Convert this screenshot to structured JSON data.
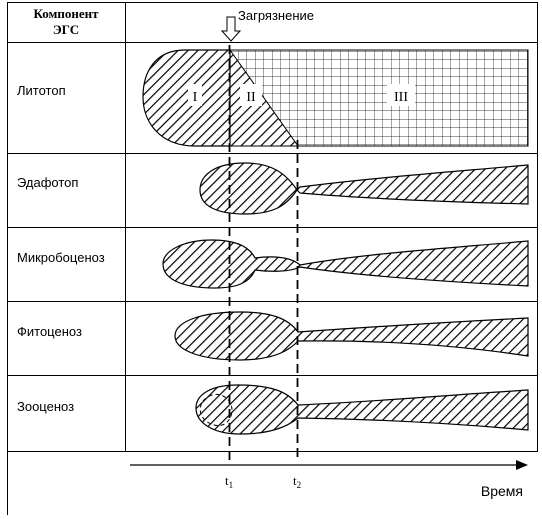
{
  "header": {
    "column_title_line1": "Компонент",
    "column_title_line2": "ЭГС",
    "pollution_label": "Загрязнение"
  },
  "rows": [
    {
      "label": "Литотоп"
    },
    {
      "label": "Эдафотоп"
    },
    {
      "label": "Микробоценоз"
    },
    {
      "label": "Фитоценоз"
    },
    {
      "label": "Зооценоз"
    }
  ],
  "zones": [
    "I",
    "II",
    "III"
  ],
  "time_marks": [
    {
      "base": "t",
      "sub": "1"
    },
    {
      "base": "t",
      "sub": "2"
    }
  ],
  "axis": {
    "label": "Время"
  }
}
